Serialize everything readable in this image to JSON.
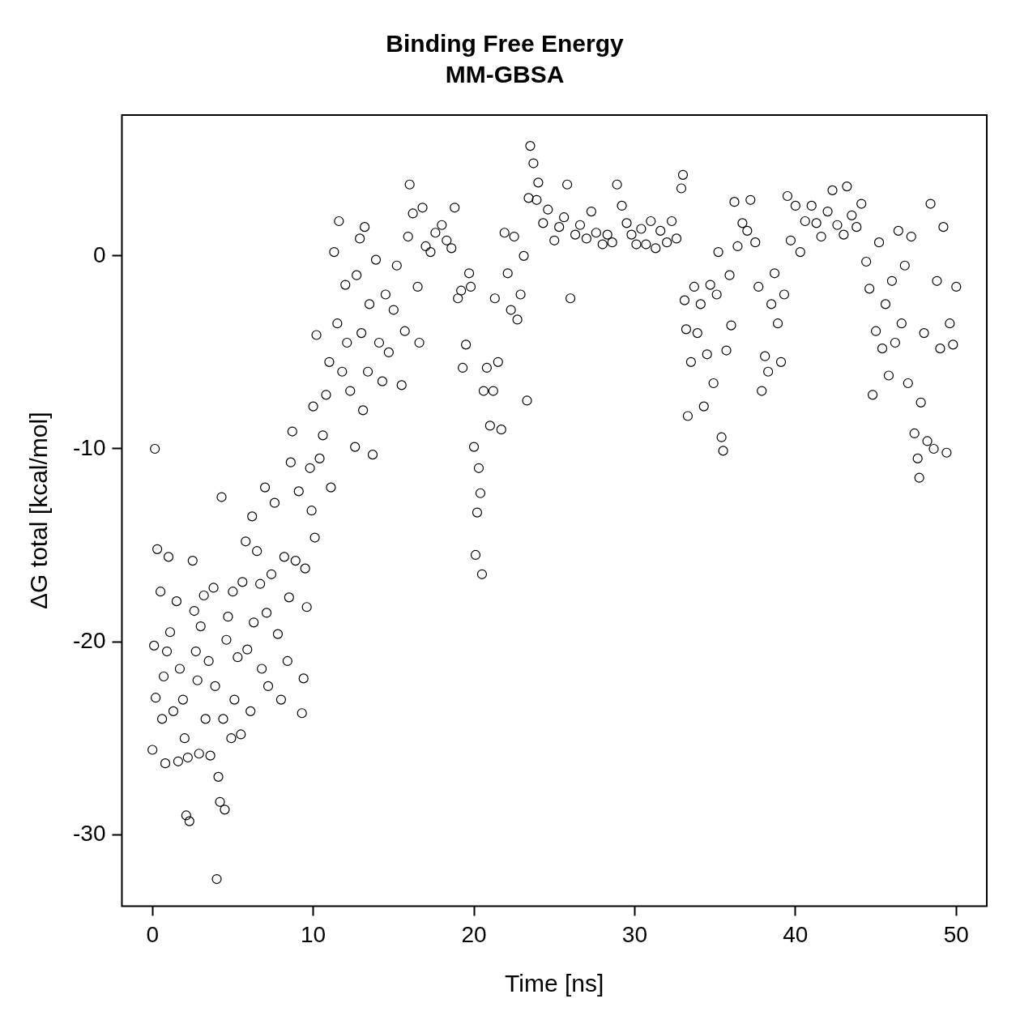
{
  "chart_data": {
    "type": "scatter",
    "title": "Binding Free Energy",
    "subtitle": "MM-GBSA",
    "xlabel": "Time [ns]",
    "ylabel": "ΔG total [kcal/mol]",
    "marker": "circle",
    "grid": false,
    "legend": false,
    "xlim": [
      -1.9,
      51.9
    ],
    "ylim": [
      -33.7,
      7.3
    ],
    "xticks": [
      0,
      10,
      20,
      30,
      40,
      50
    ],
    "yticks": [
      -30,
      -20,
      -10,
      0
    ],
    "series": [
      {
        "color": "#000000",
        "x": [
          0,
          0.1,
          0.15,
          0.2,
          0.3,
          0.5,
          0.6,
          0.7,
          0.8,
          0.9,
          1.0,
          1.1,
          1.3,
          1.5,
          1.6,
          1.7,
          1.9,
          2.0,
          2.1,
          2.2,
          2.3,
          2.5,
          2.6,
          2.7,
          2.8,
          2.9,
          3.0,
          3.2,
          3.3,
          3.5,
          3.6,
          3.8,
          3.9,
          4.0,
          4.1,
          4.2,
          4.3,
          4.4,
          4.5,
          4.6,
          4.7,
          4.9,
          5.0,
          5.1,
          5.3,
          5.5,
          5.6,
          5.8,
          5.9,
          6.1,
          6.2,
          6.3,
          6.5,
          6.7,
          6.8,
          7.0,
          7.1,
          7.2,
          7.4,
          7.6,
          7.8,
          8.0,
          8.2,
          8.4,
          8.5,
          8.6,
          8.7,
          8.9,
          9.1,
          9.3,
          9.4,
          9.5,
          9.6,
          9.8,
          9.9,
          10.0,
          10.1,
          10.2,
          10.4,
          10.6,
          10.8,
          11.0,
          11.1,
          11.3,
          11.5,
          11.6,
          11.8,
          12.0,
          12.1,
          12.3,
          12.6,
          12.7,
          12.9,
          13.0,
          13.1,
          13.2,
          13.4,
          13.5,
          13.7,
          13.9,
          14.1,
          14.3,
          14.5,
          14.7,
          15.0,
          15.2,
          15.5,
          15.7,
          15.9,
          16.0,
          16.2,
          16.5,
          16.6,
          16.8,
          17.0,
          17.3,
          17.6,
          18.0,
          18.3,
          18.6,
          18.8,
          19.0,
          19.2,
          19.3,
          19.5,
          19.7,
          19.8,
          20.0,
          20.1,
          20.2,
          20.3,
          20.4,
          20.5,
          20.6,
          20.8,
          21.0,
          21.2,
          21.3,
          21.5,
          21.7,
          21.9,
          22.1,
          22.3,
          22.5,
          22.7,
          22.9,
          23.1,
          23.3,
          23.4,
          23.5,
          23.7,
          23.9,
          24.0,
          24.3,
          24.6,
          25.0,
          25.3,
          25.6,
          25.8,
          26.0,
          26.3,
          26.6,
          27.0,
          27.3,
          27.6,
          28.0,
          28.3,
          28.6,
          28.9,
          29.2,
          29.5,
          29.8,
          30.1,
          30.4,
          30.7,
          31.0,
          31.3,
          31.6,
          32.0,
          32.3,
          32.6,
          32.9,
          33.0,
          33.1,
          33.2,
          33.3,
          33.5,
          33.7,
          33.9,
          34.1,
          34.3,
          34.5,
          34.7,
          34.9,
          35.1,
          35.2,
          35.4,
          35.5,
          35.7,
          35.9,
          36.0,
          36.2,
          36.4,
          36.7,
          37.0,
          37.2,
          37.5,
          37.7,
          37.9,
          38.1,
          38.3,
          38.5,
          38.7,
          38.9,
          39.1,
          39.3,
          39.5,
          39.7,
          40.0,
          40.3,
          40.6,
          41.0,
          41.3,
          41.6,
          42.0,
          42.3,
          42.6,
          43.0,
          43.2,
          43.5,
          43.8,
          44.1,
          44.4,
          44.6,
          44.8,
          45.0,
          45.2,
          45.4,
          45.6,
          45.8,
          46.0,
          46.2,
          46.4,
          46.6,
          46.8,
          47.0,
          47.2,
          47.4,
          47.6,
          47.7,
          47.8,
          48.0,
          48.2,
          48.4,
          48.6,
          48.8,
          49.0,
          49.2,
          49.4,
          49.6,
          49.8,
          50.0
        ],
        "values": [
          -25.6,
          -20.2,
          -10,
          -22.9,
          -15.2,
          -17.4,
          -24,
          -21.8,
          -26.3,
          -20.5,
          -15.6,
          -19.5,
          -23.6,
          -17.9,
          -26.2,
          -21.4,
          -23,
          -25,
          -29,
          -26,
          -29.3,
          -15.8,
          -18.4,
          -20.5,
          -22,
          -25.8,
          -19.2,
          -17.6,
          -24,
          -21,
          -25.9,
          -17.2,
          -22.3,
          -32.3,
          -27,
          -28.3,
          -12.5,
          -24,
          -28.7,
          -19.9,
          -18.7,
          -25,
          -17.4,
          -23,
          -20.8,
          -24.8,
          -16.9,
          -14.8,
          -20.4,
          -23.6,
          -13.5,
          -19,
          -15.3,
          -17,
          -21.4,
          -12,
          -18.5,
          -22.3,
          -16.5,
          -12.8,
          -19.6,
          -23,
          -15.6,
          -21,
          -17.7,
          -10.7,
          -9.1,
          -15.8,
          -12.2,
          -23.7,
          -21.9,
          -16.2,
          -18.2,
          -11,
          -13.2,
          -7.8,
          -14.6,
          -4.1,
          -10.5,
          -9.3,
          -7.2,
          -5.5,
          -12,
          0.2,
          -3.5,
          1.8,
          -6,
          -1.5,
          -4.5,
          -7,
          -9.9,
          -1,
          0.9,
          -4,
          -8,
          1.5,
          -6,
          -2.5,
          -10.3,
          -0.2,
          -4.5,
          -6.5,
          -2,
          -5,
          -2.8,
          -0.5,
          -6.7,
          -3.9,
          1,
          3.7,
          2.2,
          -1.6,
          -4.5,
          2.5,
          0.5,
          0.2,
          1.2,
          1.6,
          0.8,
          0.4,
          2.5,
          -2.2,
          -1.8,
          -5.8,
          -4.6,
          -0.9,
          -1.6,
          -9.9,
          -15.5,
          -13.3,
          -11,
          -12.3,
          -16.5,
          -7,
          -5.8,
          -8.8,
          -7,
          -2.2,
          -5.5,
          -9,
          1.2,
          -0.9,
          -2.8,
          1,
          -3.3,
          -2,
          0,
          -7.5,
          3,
          5.7,
          4.8,
          2.9,
          3.8,
          1.7,
          2.4,
          0.8,
          1.5,
          2,
          3.7,
          -2.2,
          1.1,
          1.6,
          0.9,
          2.3,
          1.2,
          0.6,
          1.1,
          0.7,
          3.7,
          2.6,
          1.7,
          1.1,
          0.6,
          1.4,
          0.6,
          1.8,
          0.4,
          1.3,
          0.7,
          1.8,
          0.9,
          3.5,
          4.2,
          -2.3,
          -3.8,
          -8.3,
          -5.5,
          -1.6,
          -4,
          -2.5,
          -7.8,
          -5.1,
          -1.5,
          -6.6,
          -2,
          0.2,
          -9.4,
          -10.1,
          -4.9,
          -1,
          -3.6,
          2.8,
          0.5,
          1.7,
          1.3,
          2.9,
          0.7,
          -1.6,
          -7,
          -5.2,
          -6,
          -2.5,
          -0.9,
          -3.5,
          -5.5,
          -2,
          3.1,
          0.8,
          2.6,
          0.2,
          1.8,
          2.6,
          1.7,
          1,
          2.3,
          3.4,
          1.6,
          1.1,
          3.6,
          2.1,
          1.5,
          2.7,
          -0.3,
          -1.7,
          -7.2,
          -3.9,
          0.7,
          -4.8,
          -2.5,
          -6.2,
          -1.3,
          -4.5,
          1.3,
          -3.5,
          -0.5,
          -6.6,
          1,
          -9.2,
          -10.5,
          -11.5,
          -7.6,
          -4,
          -9.6,
          2.7,
          -10,
          -1.3,
          -4.8,
          1.5,
          -10.2,
          -3.5,
          -4.6,
          -1.6
        ]
      }
    ]
  }
}
